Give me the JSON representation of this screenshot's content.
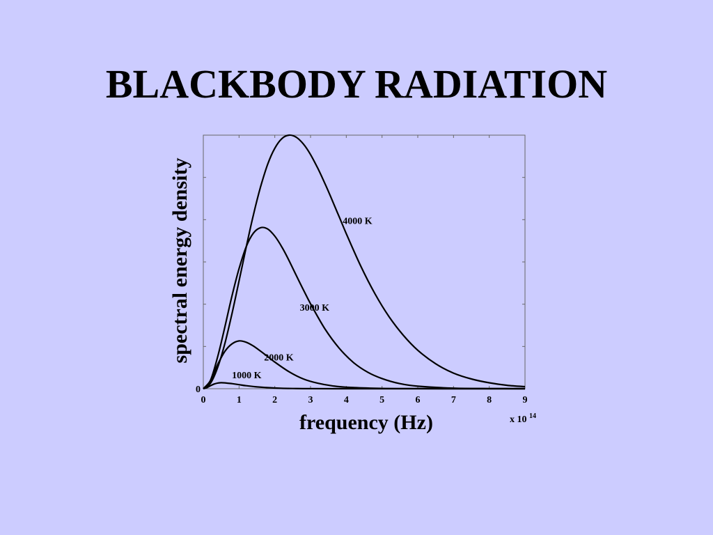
{
  "slide": {
    "title": "BLACKBODY RADIATION"
  },
  "chart_data": {
    "type": "line",
    "xlabel": "frequency (Hz)",
    "x_multiplier": "x 10",
    "x_multiplier_exponent": "14",
    "ylabel": "spectral energy density",
    "xlim": [
      0,
      9
    ],
    "ylim": [
      0,
      6
    ],
    "x_ticks": [
      "0",
      "1",
      "2",
      "3",
      "4",
      "5",
      "6",
      "7",
      "8",
      "9"
    ],
    "y_ticks": [
      "0"
    ],
    "grid": false,
    "legend": "none",
    "series": [
      {
        "name": "1000 K",
        "x": [
          0,
          0.1,
          0.2,
          0.3,
          0.4,
          0.5,
          0.6,
          0.8,
          1.0,
          1.2,
          1.5,
          2.0,
          2.5,
          3.0,
          4.0,
          5.0,
          6.0,
          7.0,
          8.0,
          9.0
        ],
        "y": [
          0,
          0.024,
          0.071,
          0.11,
          0.133,
          0.141,
          0.138,
          0.12,
          0.095,
          0.071,
          0.043,
          0.016,
          0.005,
          0.0016,
          0.0001,
          0,
          0,
          0,
          0,
          0
        ]
      },
      {
        "name": "2000 K",
        "x": [
          0,
          0.2,
          0.4,
          0.6,
          0.8,
          1.0,
          1.2,
          1.4,
          1.6,
          1.8,
          2.0,
          2.4,
          2.8,
          3.2,
          3.6,
          4.0,
          5.0,
          6.0,
          7.0,
          8.0,
          9.0
        ],
        "y": [
          0,
          0.19,
          0.57,
          0.88,
          1.06,
          1.13,
          1.1,
          1.01,
          0.89,
          0.76,
          0.63,
          0.4,
          0.23,
          0.13,
          0.07,
          0.036,
          0.007,
          0.001,
          0.0002,
          0,
          0
        ]
      },
      {
        "name": "3000 K",
        "x": [
          0,
          0.2,
          0.4,
          0.6,
          0.8,
          1.0,
          1.2,
          1.4,
          1.6,
          1.8,
          2.0,
          2.2,
          2.4,
          2.6,
          2.8,
          3.0,
          3.4,
          3.8,
          4.2,
          4.6,
          5.0,
          5.5,
          6.0,
          7.0,
          8.0,
          9.0
        ],
        "y": [
          0,
          0.2,
          0.75,
          1.45,
          2.19,
          2.84,
          3.36,
          3.68,
          3.81,
          3.78,
          3.61,
          3.35,
          3.03,
          2.68,
          2.34,
          2.01,
          1.42,
          0.96,
          0.62,
          0.39,
          0.24,
          0.12,
          0.06,
          0.013,
          0.003,
          0.0005
        ]
      },
      {
        "name": "4000 K",
        "x": [
          0,
          0.2,
          0.4,
          0.6,
          0.8,
          1.0,
          1.2,
          1.4,
          1.6,
          1.8,
          2.0,
          2.2,
          2.4,
          2.6,
          2.8,
          3.0,
          3.2,
          3.4,
          3.6,
          3.8,
          4.0,
          4.4,
          4.8,
          5.2,
          5.6,
          6.0,
          6.5,
          7.0,
          7.5,
          8.0,
          8.5,
          9.0
        ],
        "y": [
          0,
          0.13,
          0.5,
          1.06,
          1.77,
          2.55,
          3.35,
          4.11,
          4.77,
          5.31,
          5.69,
          5.92,
          6.0,
          5.95,
          5.79,
          5.54,
          5.22,
          4.86,
          4.47,
          4.07,
          3.67,
          2.91,
          2.25,
          1.7,
          1.26,
          0.91,
          0.59,
          0.37,
          0.23,
          0.14,
          0.08,
          0.05
        ]
      }
    ],
    "annotations": [
      {
        "text": "4000 K",
        "series": "4000 K",
        "x": 3.9,
        "y": 3.9
      },
      {
        "text": "3000 K",
        "series": "3000 K",
        "x": 2.7,
        "y": 1.85
      },
      {
        "text": "2000 K",
        "series": "2000 K",
        "x": 1.7,
        "y": 0.67
      },
      {
        "text": "1000 K",
        "series": "1000 K",
        "x": 0.8,
        "y": 0.25
      }
    ]
  }
}
